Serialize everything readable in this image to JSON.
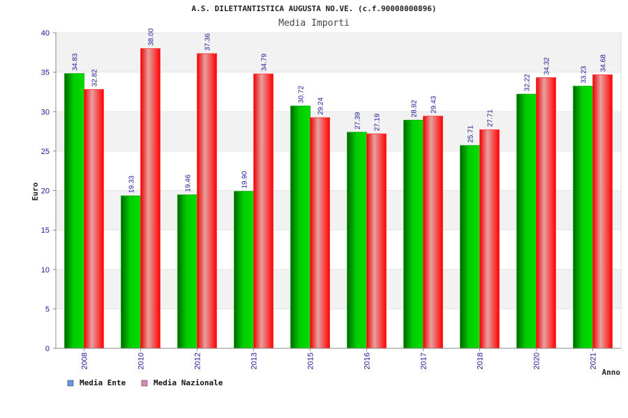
{
  "chart_data": {
    "type": "bar",
    "title": "A.S. DILETTANTISTICA AUGUSTA NO.VE. (c.f.90008000896)",
    "subtitle": "Media Importi",
    "xlabel": "Anno",
    "ylabel": "Euro",
    "ylim": [
      0,
      40
    ],
    "yticks": [
      0,
      5,
      10,
      15,
      20,
      25,
      30,
      35,
      40
    ],
    "grid": true,
    "legend_position": "bottom-left",
    "categories": [
      "2008",
      "2010",
      "2012",
      "2013",
      "2015",
      "2016",
      "2017",
      "2018",
      "2020",
      "2021"
    ],
    "series": [
      {
        "name": "Media Ente",
        "color": "#00bb00",
        "legend_color": "#6699ee",
        "values": [
          34.83,
          19.33,
          19.46,
          19.9,
          30.72,
          27.39,
          28.92,
          25.71,
          32.22,
          33.23
        ],
        "labels": [
          "34.83",
          "19.33",
          "19.46",
          "19.90",
          "30.72",
          "27.39",
          "28.92",
          "25.71",
          "32.22",
          "33.23"
        ]
      },
      {
        "name": "Media Nazionale",
        "color": "#ee1111",
        "legend_color": "#dd88bb",
        "values": [
          32.82,
          38.0,
          37.36,
          34.79,
          29.24,
          27.19,
          29.43,
          27.71,
          34.32,
          34.68
        ],
        "labels": [
          "32.82",
          "38.00",
          "37.36",
          "34.79",
          "29.24",
          "27.19",
          "29.43",
          "27.71",
          "34.32",
          "34.68"
        ]
      }
    ]
  }
}
